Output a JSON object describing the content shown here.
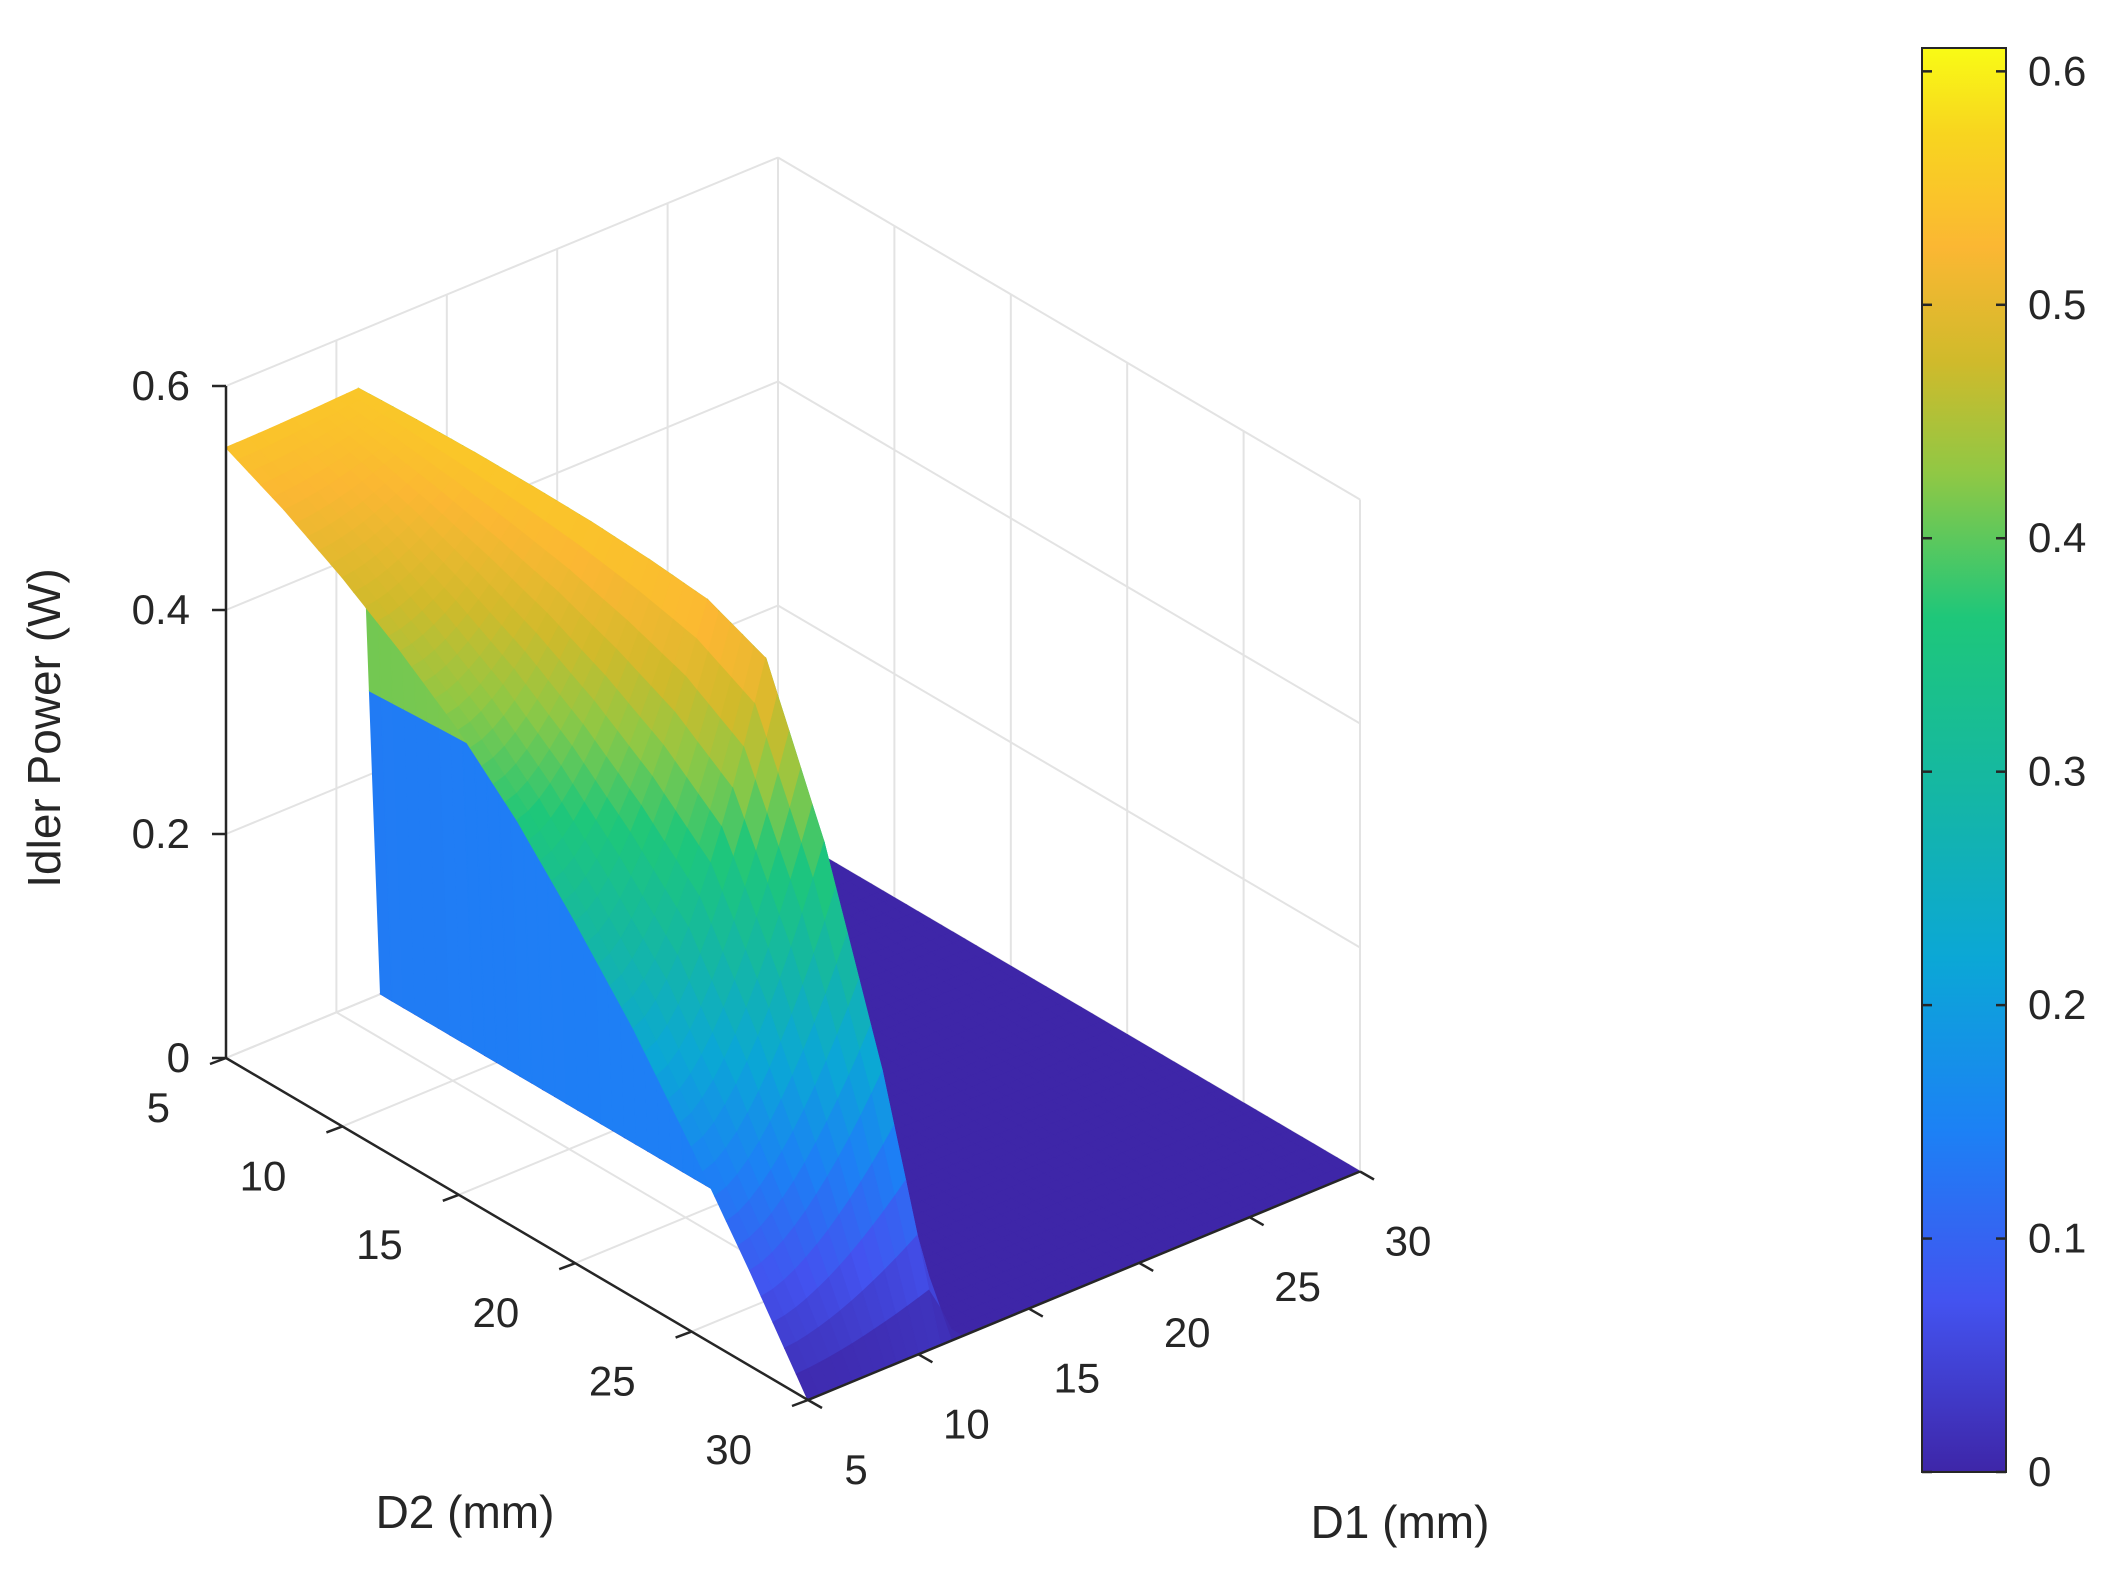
{
  "chart_data": {
    "type": "surface",
    "title": "",
    "xlabel": "D1 (mm)",
    "ylabel": "D2 (mm)",
    "zlabel": "Idler Power (W)",
    "x_ticks": [
      5,
      10,
      15,
      20,
      25,
      30
    ],
    "y_ticks": [
      5,
      10,
      15,
      20,
      25,
      30
    ],
    "z_ticks": [
      0,
      0.2,
      0.4,
      0.6
    ],
    "z_tick_labels": [
      "0",
      "0.2",
      "0.4",
      "0.6"
    ],
    "xlim": [
      5,
      30
    ],
    "ylim": [
      5,
      30
    ],
    "zlim": [
      0,
      0.6
    ],
    "grid": true,
    "colormap": "parula",
    "colorbar": {
      "placement": "right",
      "range": [
        0,
        0.61
      ],
      "ticks": [
        0,
        0.1,
        0.2,
        0.3,
        0.4,
        0.5,
        0.6
      ],
      "tick_labels": [
        "0",
        "0.1",
        "0.2",
        "0.3",
        "0.4",
        "0.5",
        "0.6"
      ]
    },
    "surface_profile": {
      "D2": [
        5,
        7.5,
        10,
        12.5,
        15,
        17.5,
        20,
        22.5,
        25,
        27.5,
        30
      ],
      "idler_power_at_D1_5": [
        0.545,
        0.52,
        0.49,
        0.455,
        0.415,
        0.365,
        0.305,
        0.24,
        0.165,
        0.085,
        0.0
      ],
      "idler_power_at_D1_below_threshold": [
        0.55,
        0.56,
        0.57,
        0.58,
        0.59,
        0.6,
        0.61,
        0.6,
        0.45,
        0.25,
        0.0
      ],
      "D1_threshold_mm": 12,
      "idler_power_above_threshold": 0.0
    }
  }
}
